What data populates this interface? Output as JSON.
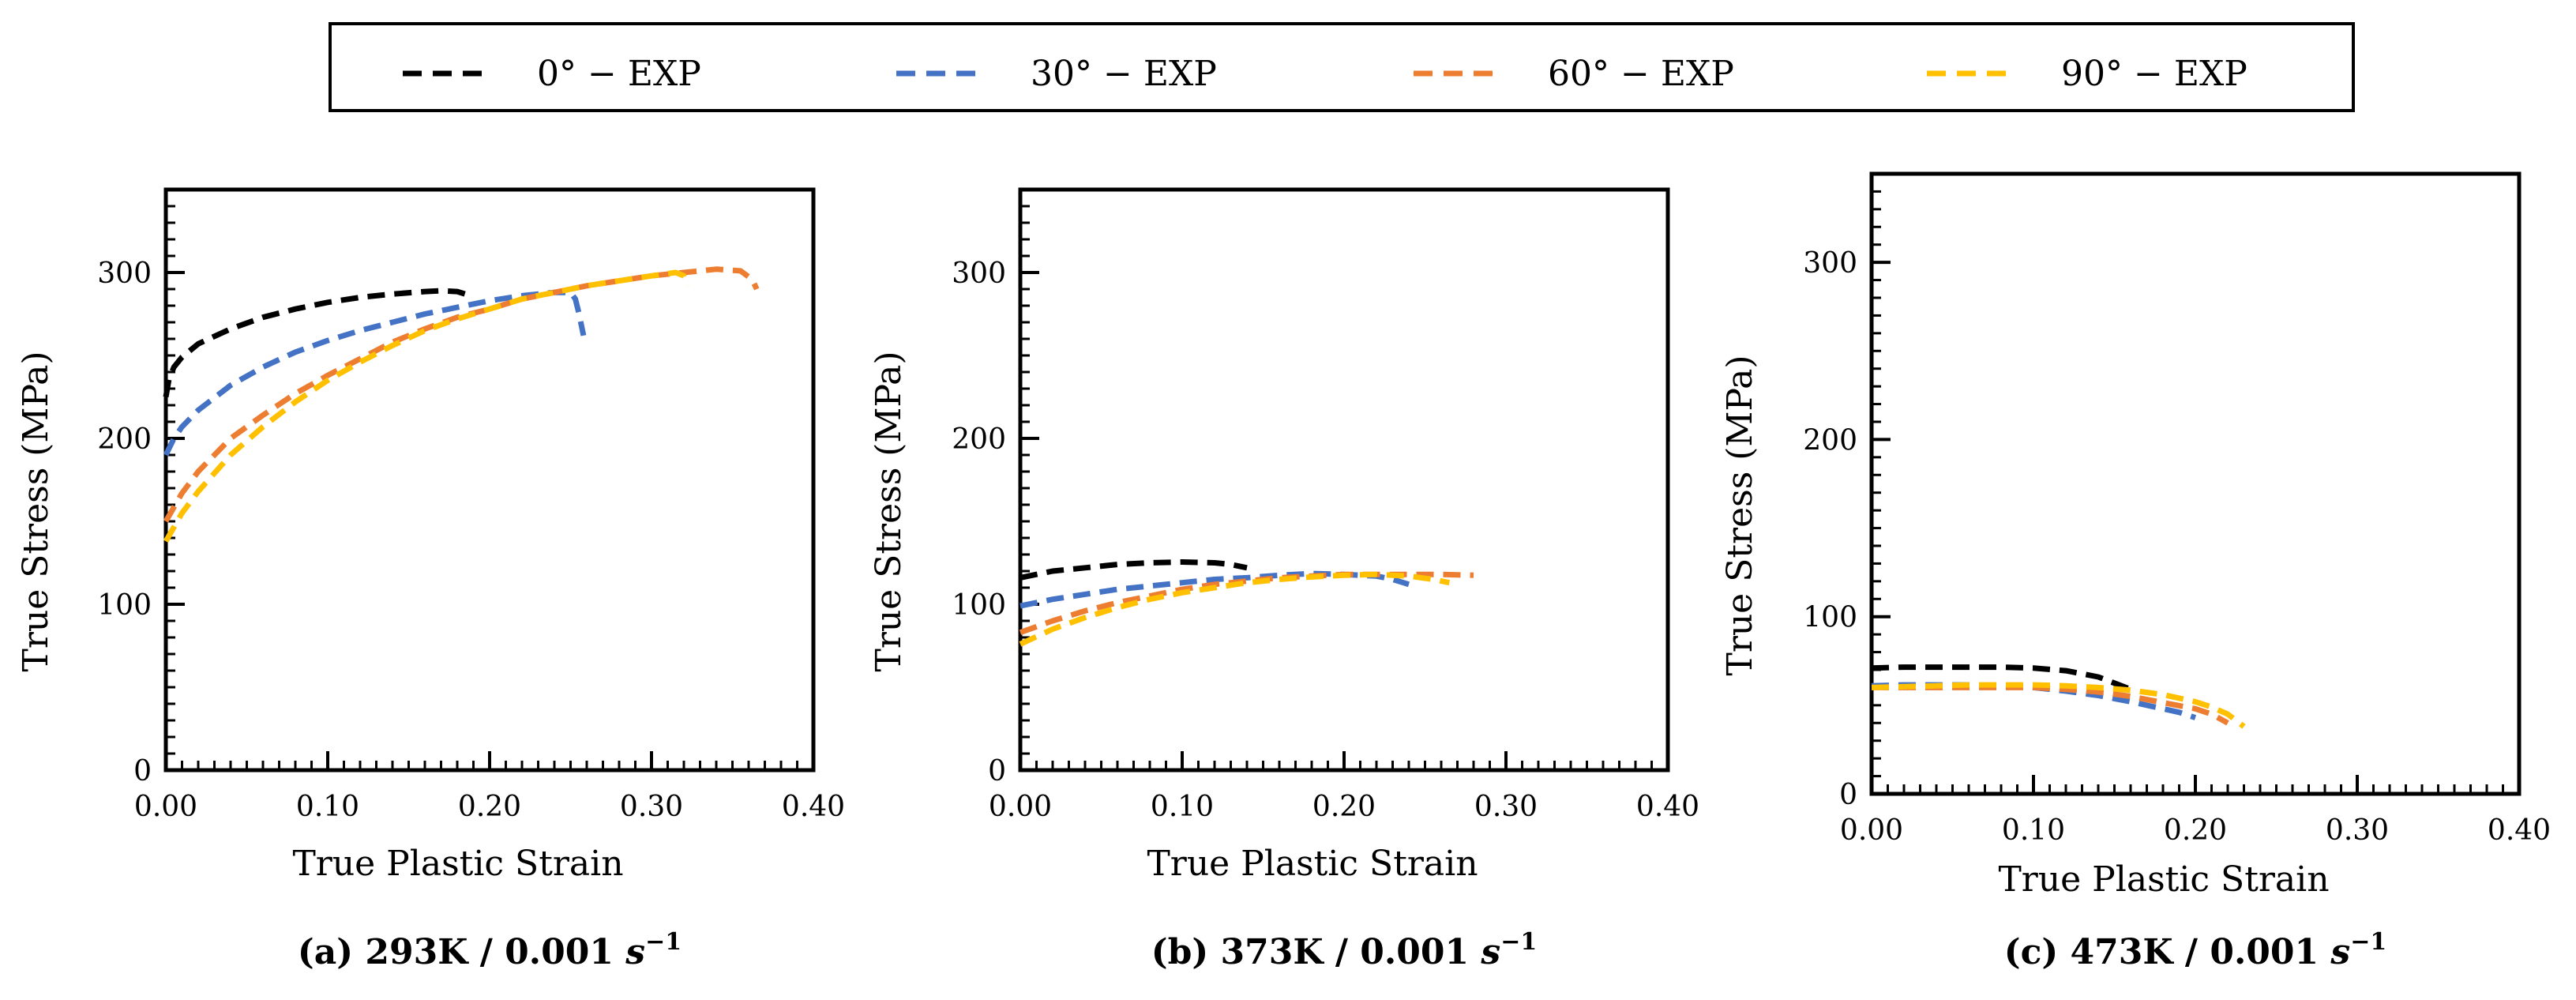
{
  "legend": {
    "entries": [
      {
        "label": "0° − EXP",
        "color": "#000000"
      },
      {
        "label": "30° − EXP",
        "color": "#4472C4"
      },
      {
        "label": "60° − EXP",
        "color": "#ED7D31"
      },
      {
        "label": "90° − EXP",
        "color": "#FFC000"
      }
    ]
  },
  "chart_data": [
    {
      "type": "line",
      "caption_main": "(a) 293K / 0.001 ",
      "caption_unit": "s",
      "caption_exp": "−1",
      "xlabel": "True Plastic Strain",
      "ylabel": "True Stress (MPa)",
      "xlim": [
        0,
        0.4
      ],
      "ylim": [
        0,
        350
      ],
      "xticks": [
        0.0,
        0.1,
        0.2,
        0.3,
        0.4
      ],
      "xtick_labels": [
        "0.00",
        "0.10",
        "0.20",
        "0.30",
        "0.40"
      ],
      "yticks": [
        0,
        100,
        200,
        300
      ],
      "ytick_labels": [
        "0",
        "100",
        "200",
        "300"
      ],
      "series": [
        {
          "name": "0° − EXP",
          "color": "#000000",
          "x": [
            0,
            0.002,
            0.005,
            0.01,
            0.02,
            0.04,
            0.06,
            0.08,
            0.1,
            0.12,
            0.14,
            0.16,
            0.17,
            0.18,
            0.185
          ],
          "y": [
            225,
            236,
            243,
            249,
            257,
            266,
            273,
            278,
            282,
            285,
            287,
            288.5,
            289,
            288.5,
            287
          ]
        },
        {
          "name": "30° − EXP",
          "color": "#4472C4",
          "x": [
            0,
            0.005,
            0.01,
            0.02,
            0.04,
            0.06,
            0.08,
            0.1,
            0.12,
            0.14,
            0.16,
            0.18,
            0.2,
            0.22,
            0.24,
            0.25,
            0.253,
            0.255,
            0.258
          ],
          "y": [
            190,
            200,
            207,
            217,
            232,
            243,
            252,
            259,
            265,
            270,
            275,
            279,
            283,
            286,
            288,
            288,
            284,
            276,
            262
          ]
        },
        {
          "name": "60° − EXP",
          "color": "#ED7D31",
          "x": [
            0,
            0.01,
            0.02,
            0.04,
            0.06,
            0.08,
            0.1,
            0.12,
            0.14,
            0.16,
            0.18,
            0.2,
            0.22,
            0.24,
            0.26,
            0.28,
            0.3,
            0.32,
            0.34,
            0.355,
            0.362,
            0.365
          ],
          "y": [
            150,
            167,
            180,
            200,
            214,
            227,
            238,
            248,
            258,
            266,
            273,
            278,
            284,
            288,
            292,
            295,
            298,
            300,
            302,
            301,
            296,
            290
          ]
        },
        {
          "name": "90° − EXP",
          "color": "#FFC000",
          "x": [
            0,
            0.01,
            0.02,
            0.04,
            0.06,
            0.08,
            0.1,
            0.12,
            0.14,
            0.16,
            0.18,
            0.2,
            0.22,
            0.24,
            0.26,
            0.28,
            0.3,
            0.315,
            0.32,
            0.322
          ],
          "y": [
            138,
            155,
            168,
            190,
            207,
            222,
            235,
            246,
            256,
            265,
            272,
            278,
            284,
            288,
            292,
            295,
            298,
            300,
            298,
            292
          ]
        }
      ]
    },
    {
      "type": "line",
      "caption_main": "(b) 373K / 0.001 ",
      "caption_unit": "s",
      "caption_exp": "−1",
      "xlabel": "True Plastic Strain",
      "ylabel": "True Stress (MPa)",
      "xlim": [
        0,
        0.4
      ],
      "ylim": [
        0,
        350
      ],
      "xticks": [
        0.0,
        0.1,
        0.2,
        0.3,
        0.4
      ],
      "xtick_labels": [
        "0.00",
        "0.10",
        "0.20",
        "0.30",
        "0.40"
      ],
      "yticks": [
        0,
        100,
        200,
        300
      ],
      "ytick_labels": [
        "0",
        "100",
        "200",
        "300"
      ],
      "series": [
        {
          "name": "0° − EXP",
          "color": "#000000",
          "x": [
            0,
            0.01,
            0.02,
            0.04,
            0.06,
            0.08,
            0.1,
            0.12,
            0.13,
            0.14
          ],
          "y": [
            116,
            118,
            120,
            122,
            124,
            125,
            125.5,
            125,
            124,
            122
          ]
        },
        {
          "name": "30° − EXP",
          "color": "#4472C4",
          "x": [
            0,
            0.02,
            0.04,
            0.06,
            0.08,
            0.1,
            0.12,
            0.14,
            0.16,
            0.18,
            0.2,
            0.22,
            0.23,
            0.24
          ],
          "y": [
            99,
            103,
            106,
            109,
            111,
            113,
            115,
            116,
            117.5,
            118.5,
            118,
            117,
            115,
            112
          ]
        },
        {
          "name": "60° − EXP",
          "color": "#ED7D31",
          "x": [
            0,
            0.02,
            0.04,
            0.06,
            0.08,
            0.1,
            0.12,
            0.14,
            0.16,
            0.18,
            0.2,
            0.22,
            0.24,
            0.26,
            0.28
          ],
          "y": [
            83,
            90,
            96,
            101,
            105,
            109,
            112,
            114,
            116,
            117,
            118,
            118,
            118,
            118,
            117.5
          ]
        },
        {
          "name": "90° − EXP",
          "color": "#FFC000",
          "x": [
            0,
            0.02,
            0.04,
            0.06,
            0.08,
            0.1,
            0.12,
            0.14,
            0.16,
            0.18,
            0.2,
            0.22,
            0.24,
            0.255,
            0.265
          ],
          "y": [
            76,
            85,
            92,
            98,
            103,
            107,
            110,
            113,
            115,
            116.5,
            117.5,
            118,
            117,
            115,
            113
          ]
        }
      ]
    },
    {
      "type": "line",
      "caption_main": "(c) 473K / 0.001 ",
      "caption_unit": "s",
      "caption_exp": "−1",
      "xlabel": "True Plastic Strain",
      "ylabel": "True Stress (MPa)",
      "xlim": [
        0,
        0.4
      ],
      "ylim": [
        0,
        350
      ],
      "xticks": [
        0.0,
        0.1,
        0.2,
        0.3,
        0.4
      ],
      "xtick_labels": [
        "0.00",
        "0.10",
        "0.20",
        "0.30",
        "0.40"
      ],
      "yticks": [
        0,
        100,
        200,
        300
      ],
      "ytick_labels": [
        "0",
        "100",
        "200",
        "300"
      ],
      "series": [
        {
          "name": "0° − EXP",
          "color": "#000000",
          "x": [
            0,
            0.02,
            0.04,
            0.06,
            0.08,
            0.1,
            0.12,
            0.14,
            0.15,
            0.16
          ],
          "y": [
            71,
            71.5,
            71.5,
            71.5,
            71.5,
            71,
            69.5,
            66,
            62.5,
            59
          ]
        },
        {
          "name": "30° − EXP",
          "color": "#4472C4",
          "x": [
            0,
            0.02,
            0.04,
            0.06,
            0.08,
            0.1,
            0.12,
            0.14,
            0.16,
            0.18,
            0.19,
            0.2
          ],
          "y": [
            61,
            61.5,
            61.5,
            61.5,
            61,
            60,
            58,
            55.5,
            52,
            48,
            46,
            43
          ]
        },
        {
          "name": "60° − EXP",
          "color": "#ED7D31",
          "x": [
            0,
            0.02,
            0.04,
            0.06,
            0.08,
            0.1,
            0.12,
            0.14,
            0.16,
            0.18,
            0.2,
            0.21,
            0.22
          ],
          "y": [
            60,
            60,
            60,
            60,
            60,
            60,
            59,
            57.5,
            55,
            51.5,
            48,
            45,
            40
          ]
        },
        {
          "name": "90° − EXP",
          "color": "#FFC000",
          "x": [
            0,
            0.02,
            0.04,
            0.06,
            0.08,
            0.1,
            0.12,
            0.14,
            0.16,
            0.18,
            0.2,
            0.21,
            0.22,
            0.23
          ],
          "y": [
            60,
            60.5,
            61,
            61.5,
            61.5,
            61.5,
            61,
            60,
            58.5,
            56,
            52,
            49,
            45,
            38
          ]
        }
      ]
    }
  ]
}
